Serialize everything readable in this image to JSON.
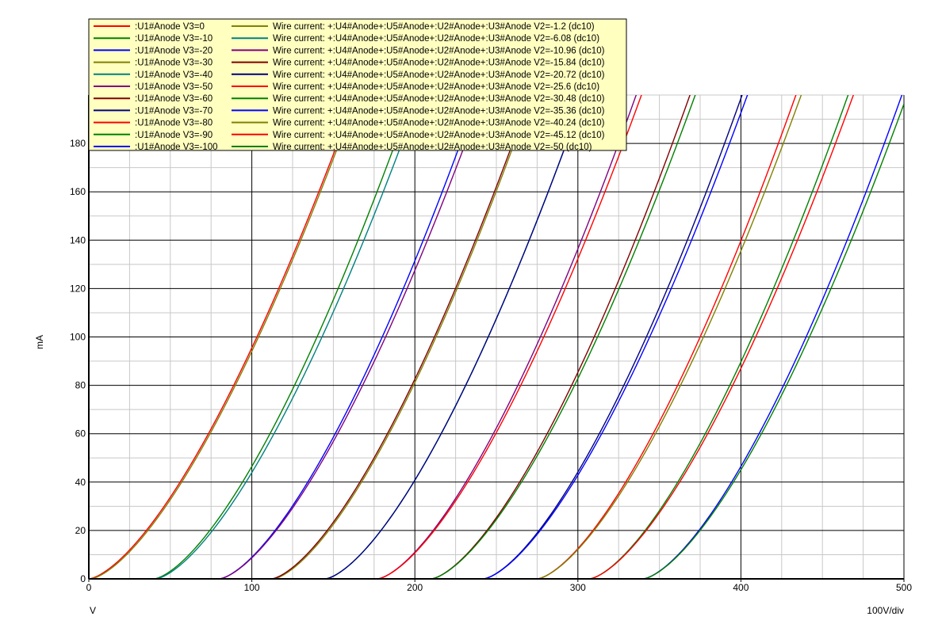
{
  "chart_data": {
    "type": "line",
    "title": "",
    "xlabel": "V",
    "ylabel": "mA",
    "scale_label": "100V/div",
    "xlim": [
      0,
      500
    ],
    "ylim": [
      0,
      200
    ],
    "x_ticks": [
      0,
      100,
      200,
      300,
      400,
      500
    ],
    "y_ticks": [
      0,
      20,
      40,
      60,
      80,
      100,
      120,
      140,
      160,
      180
    ],
    "x_minor_step": 25,
    "y_minor_step": 10,
    "grid": true,
    "legend_position": "top-left",
    "curve_law": "I = k * max(0, V - V0)^1.5",
    "series": [
      {
        "name": ":U1#Anode V3=0",
        "color": "#ff0000",
        "V0": 0,
        "k": 0.0955
      },
      {
        "name": ":U1#Anode V3=-10",
        "color": "#008000",
        "V0": 40,
        "k": 0.1
      },
      {
        "name": ":U1#Anode V3=-20",
        "color": "#0000ff",
        "V0": 80,
        "k": 0.1
      },
      {
        "name": ":U1#Anode V3=-30",
        "color": "#808000",
        "V0": 113,
        "k": 0.1
      },
      {
        "name": ":U1#Anode V3=-40",
        "color": "#008080",
        "V0": 145,
        "k": 0.1
      },
      {
        "name": ":U1#Anode V3=-50",
        "color": "#800080",
        "V0": 177,
        "k": 0.1
      },
      {
        "name": ":U1#Anode V3=-60",
        "color": "#800000",
        "V0": 210,
        "k": 0.1
      },
      {
        "name": ":U1#Anode V3=-70",
        "color": "#000080",
        "V0": 242,
        "k": 0.1
      },
      {
        "name": ":U1#Anode V3=-80",
        "color": "#ff0000",
        "V0": 275,
        "k": 0.1
      },
      {
        "name": ":U1#Anode V3=-90",
        "color": "#008000",
        "V0": 307,
        "k": 0.1
      },
      {
        "name": ":U1#Anode V3=-100",
        "color": "#0000ff",
        "V0": 340,
        "k": 0.1
      },
      {
        "name": "Wire current: +:U4#Anode+:U5#Anode+:U2#Anode+:U3#Anode V2=-1.2 (dc10)",
        "color": "#808000",
        "V0": 1,
        "k": 0.0955
      },
      {
        "name": "Wire current: +:U4#Anode+:U5#Anode+:U2#Anode+:U3#Anode V2=-6.08 (dc10)",
        "color": "#008080",
        "V0": 41,
        "k": 0.097
      },
      {
        "name": "Wire current: +:U4#Anode+:U5#Anode+:U2#Anode+:U3#Anode V2=-10.96 (dc10)",
        "color": "#800080",
        "V0": 80,
        "k": 0.097
      },
      {
        "name": "Wire current: +:U4#Anode+:U5#Anode+:U2#Anode+:U3#Anode V2=-15.84 (dc10)",
        "color": "#800000",
        "V0": 112,
        "k": 0.1
      },
      {
        "name": "Wire current: +:U4#Anode+:U5#Anode+:U2#Anode+:U3#Anode V2=-20.72 (dc10)",
        "color": "#000080",
        "V0": 145,
        "k": 0.1
      },
      {
        "name": "Wire current: +:U4#Anode+:U5#Anode+:U2#Anode+:U3#Anode V2=-25.6 (dc10)",
        "color": "#ff0000",
        "V0": 177,
        "k": 0.097
      },
      {
        "name": "Wire current: +:U4#Anode+:U5#Anode+:U2#Anode+:U3#Anode V2=-30.48 (dc10)",
        "color": "#008000",
        "V0": 210,
        "k": 0.097
      },
      {
        "name": "Wire current: +:U4#Anode+:U5#Anode+:U2#Anode+:U3#Anode V2=-35.36 (dc10)",
        "color": "#0000ff",
        "V0": 242,
        "k": 0.097
      },
      {
        "name": "Wire current: +:U4#Anode+:U5#Anode+:U2#Anode+:U3#Anode V2=-40.24 (dc10)",
        "color": "#808000",
        "V0": 275,
        "k": 0.097
      },
      {
        "name": "Wire current: +:U4#Anode+:U5#Anode+:U2#Anode+:U3#Anode V2=-45.12 (dc10)",
        "color": "#ff0000",
        "V0": 307,
        "k": 0.097
      },
      {
        "name": "Wire current: +:U4#Anode+:U5#Anode+:U2#Anode+:U3#Anode V2=-50 (dc10)",
        "color": "#008000",
        "V0": 340,
        "k": 0.097
      }
    ]
  }
}
